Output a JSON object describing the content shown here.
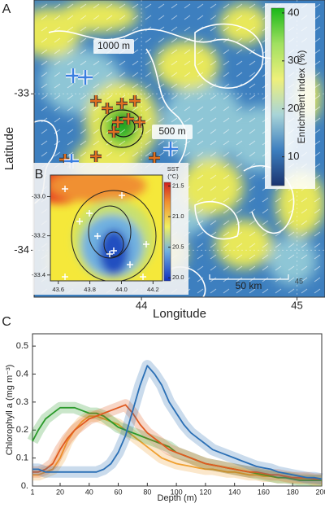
{
  "chart_data": [
    {
      "type": "map",
      "panel_label": "A",
      "xlabel": "Longitude",
      "ylabel": "Latitude",
      "xlim": [
        43.31,
        45.18
      ],
      "ylim": [
        -34.3,
        -32.4
      ],
      "xticks": [
        44,
        45
      ],
      "yticks": [
        -33,
        -34
      ],
      "colorbar": {
        "label": "Enrichment index (%)",
        "clim": [
          4,
          41
        ],
        "ticks": [
          10,
          20,
          30,
          40
        ]
      },
      "annotations": [
        "1000 m",
        "500 m",
        "50 km",
        "45"
      ]
    },
    {
      "type": "map",
      "panel_label": "B",
      "xlim": [
        43.55,
        44.26
      ],
      "ylim": [
        -33.43,
        -32.89
      ],
      "xticks": [
        43.6,
        43.8,
        {
          "value": 44,
          "label": "44.0"
        },
        44.2
      ],
      "yticks": [
        {
          "value": -33,
          "label": "-33.0"
        },
        -33.2,
        -33.4
      ],
      "colorbar": {
        "label": "SST",
        "unit": "(°C)",
        "clim": [
          19.95,
          21.56
        ],
        "ticks": [
          {
            "value": 20,
            "label": "20.0"
          },
          20.5,
          {
            "value": 21,
            "label": "21.0"
          },
          21.5
        ]
      }
    },
    {
      "type": "line",
      "panel_label": "C",
      "xlabel": "Depth (m)",
      "ylabel": "Chlorophyll a (mg m⁻³)",
      "xlim": [
        1,
        200
      ],
      "ylim": [
        0,
        0.544
      ],
      "xticks": [
        1,
        20,
        40,
        60,
        80,
        100,
        120,
        140,
        160,
        180,
        200
      ],
      "yticks": [
        {
          "value": 0,
          "label": "0."
        },
        0.1,
        0.2,
        0.3,
        0.4,
        0.5
      ],
      "x": [
        1,
        5,
        10,
        15,
        20,
        25,
        30,
        35,
        40,
        45,
        50,
        55,
        60,
        65,
        70,
        75,
        80,
        85,
        90,
        95,
        100,
        105,
        110,
        115,
        120,
        125,
        130,
        135,
        140,
        145,
        150,
        155,
        160,
        165,
        170,
        175,
        180,
        185,
        190,
        195,
        200
      ],
      "series": [
        {
          "color": "#f0a030",
          "values": [
            0.04,
            0.04,
            0.05,
            0.06,
            0.1,
            0.16,
            0.2,
            0.23,
            0.25,
            0.25,
            0.24,
            0.23,
            0.22,
            0.2,
            0.18,
            0.16,
            0.14,
            0.12,
            0.1,
            0.09,
            0.08,
            0.075,
            0.07,
            0.065,
            0.06,
            0.06,
            0.055,
            0.05,
            0.05,
            0.045,
            0.04,
            0.04,
            0.035,
            0.035,
            0.03,
            0.03,
            0.03,
            0.025,
            0.025,
            0.02,
            0.02
          ]
        },
        {
          "color": "#2a9a2a",
          "values": [
            0.16,
            0.2,
            0.24,
            0.26,
            0.28,
            0.28,
            0.28,
            0.27,
            0.26,
            0.26,
            0.25,
            0.23,
            0.21,
            0.2,
            0.19,
            0.18,
            0.17,
            0.16,
            0.15,
            0.14,
            0.12,
            0.11,
            0.1,
            0.09,
            0.08,
            0.075,
            0.07,
            0.065,
            0.06,
            0.055,
            0.05,
            0.045,
            0.04,
            0.035,
            0.03,
            0.03,
            0.025,
            0.02,
            0.02,
            0.02,
            0.02
          ]
        },
        {
          "color": "#e05a20",
          "values": [
            0.05,
            0.05,
            0.06,
            0.08,
            0.13,
            0.17,
            0.2,
            0.22,
            0.24,
            0.25,
            0.26,
            0.27,
            0.28,
            0.29,
            0.26,
            0.22,
            0.19,
            0.17,
            0.15,
            0.13,
            0.12,
            0.11,
            0.1,
            0.09,
            0.08,
            0.075,
            0.07,
            0.065,
            0.06,
            0.055,
            0.05,
            0.05,
            0.045,
            0.04,
            0.04,
            0.035,
            0.03,
            0.03,
            0.03,
            0.025,
            0.025
          ]
        },
        {
          "color": "#2a6fb5",
          "values": [
            0.06,
            0.06,
            0.05,
            0.05,
            0.05,
            0.05,
            0.05,
            0.05,
            0.05,
            0.05,
            0.06,
            0.08,
            0.12,
            0.18,
            0.27,
            0.36,
            0.43,
            0.4,
            0.36,
            0.3,
            0.26,
            0.22,
            0.19,
            0.17,
            0.15,
            0.13,
            0.12,
            0.11,
            0.1,
            0.09,
            0.08,
            0.07,
            0.065,
            0.06,
            0.05,
            0.045,
            0.04,
            0.035,
            0.03,
            0.03,
            0.025
          ]
        }
      ]
    }
  ]
}
